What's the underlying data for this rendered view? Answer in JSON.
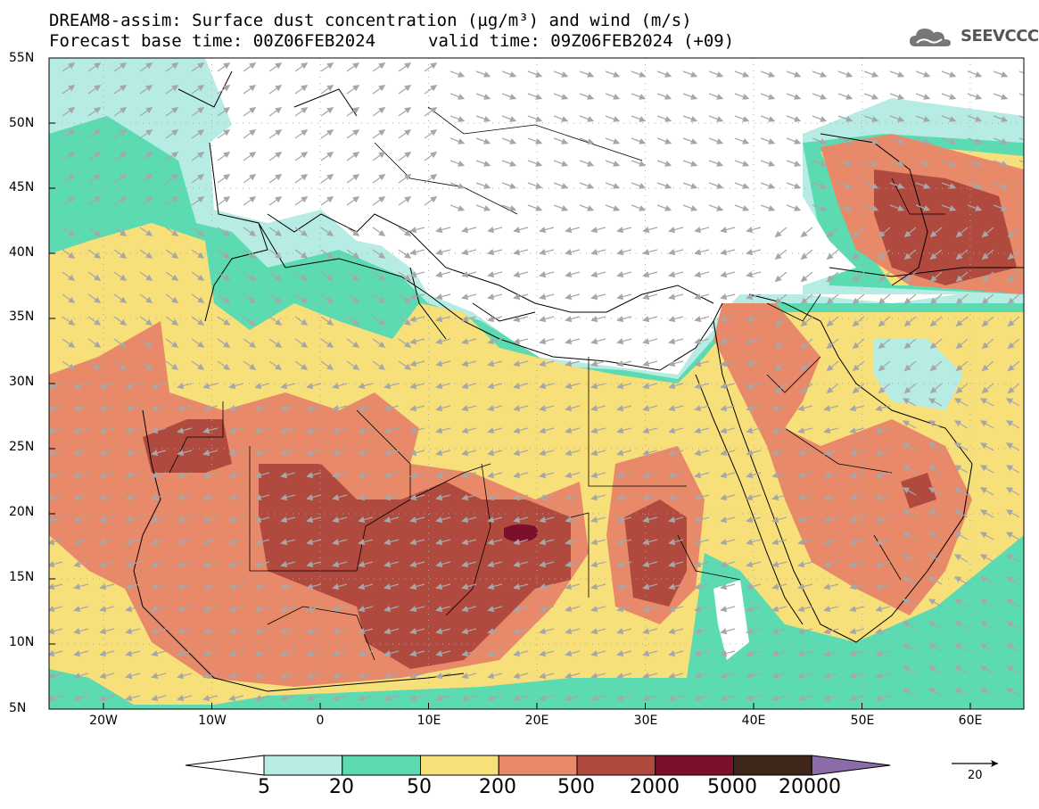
{
  "header": {
    "line1": "DREAM8-assim: Surface dust concentration (µg/m³) and wind (m/s)",
    "line2": "Forecast base time: 00Z06FEB2024",
    "line2b": "valid time: 09Z06FEB2024 (+09)",
    "logo_text": "SEEVCCC",
    "logo_icon": "cloud-icon"
  },
  "axes": {
    "lat_labels": [
      "55N",
      "50N",
      "45N",
      "40N",
      "35N",
      "30N",
      "25N",
      "20N",
      "15N",
      "10N",
      "5N"
    ],
    "lon_labels": [
      "20W",
      "10W",
      "0",
      "10E",
      "20E",
      "30E",
      "40E",
      "50E",
      "60E"
    ]
  },
  "colorbar": {
    "labels": [
      "5",
      "20",
      "50",
      "200",
      "500",
      "2000",
      "5000",
      "20000"
    ],
    "colors": [
      "#ffffff",
      "#b6ece4",
      "#5cdbb2",
      "#f7e07a",
      "#e8896a",
      "#b04a3e",
      "#7c0f2c",
      "#3e2718",
      "#8c6ca8"
    ]
  },
  "wind_reference": {
    "value": "20"
  }
}
